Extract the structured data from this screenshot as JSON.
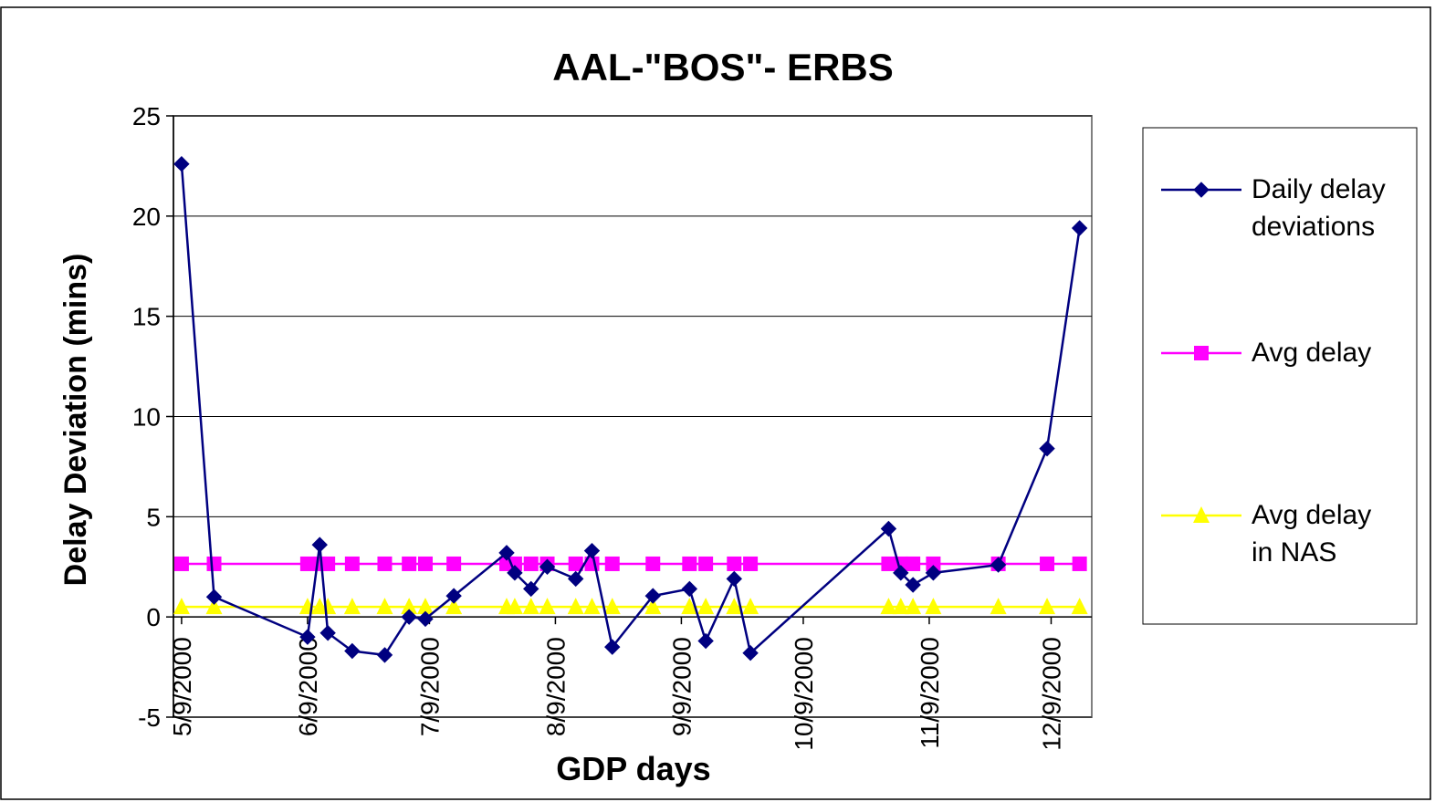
{
  "chart_data": {
    "type": "line",
    "title": "AAL-\"BOS\"- ERBS",
    "x_label": "GDP days",
    "y_label": "Delay Deviation (mins)",
    "x": [
      "5/9/2000",
      "5/17/2000",
      "6/9/2000",
      "6/12/2000",
      "6/14/2000",
      "6/20/2000",
      "6/28/2000",
      "7/4/2000",
      "7/8/2000",
      "7/15/2000",
      "7/28/2000",
      "7/30/2000",
      "8/3/2000",
      "8/7/2000",
      "8/14/2000",
      "8/18/2000",
      "8/23/2000",
      "9/2/2000",
      "9/11/2000",
      "9/15/2000",
      "9/22/2000",
      "9/26/2000",
      "10/30/2000",
      "11/2/2000",
      "11/5/2000",
      "11/10/2000",
      "11/26/2000",
      "12/8/2000",
      "12/16/2000"
    ],
    "series": [
      {
        "name": "Daily delay deviations",
        "color": "#000080",
        "marker": "diamond",
        "values": [
          22.6,
          1.0,
          -1.0,
          3.6,
          -0.8,
          -1.7,
          -1.9,
          0.0,
          -0.1,
          1.05,
          3.2,
          2.2,
          1.4,
          2.5,
          1.9,
          3.3,
          -1.5,
          1.05,
          1.4,
          -1.2,
          1.9,
          -1.8,
          4.4,
          2.2,
          1.6,
          2.2,
          2.6,
          8.4,
          19.4
        ]
      },
      {
        "name": "Avg delay",
        "color": "#ff00ff",
        "marker": "square",
        "values": [
          2.65,
          2.65,
          2.65,
          2.65,
          2.65,
          2.65,
          2.65,
          2.65,
          2.65,
          2.65,
          2.65,
          2.65,
          2.65,
          2.65,
          2.65,
          2.65,
          2.65,
          2.65,
          2.65,
          2.65,
          2.65,
          2.65,
          2.65,
          2.65,
          2.65,
          2.65,
          2.65,
          2.65,
          2.65
        ]
      },
      {
        "name": "Avg delay in NAS",
        "color": "#ffff00",
        "marker": "triangle",
        "values": [
          0.5,
          0.5,
          0.5,
          0.5,
          0.5,
          0.5,
          0.5,
          0.5,
          0.5,
          0.5,
          0.5,
          0.5,
          0.5,
          0.5,
          0.5,
          0.5,
          0.5,
          0.5,
          0.5,
          0.5,
          0.5,
          0.5,
          0.5,
          0.5,
          0.5,
          0.5,
          0.5,
          0.5,
          0.5
        ]
      }
    ],
    "xlim": [
      "5/7/2000",
      "12/19/2000"
    ],
    "xticks": [
      "5/9/2000",
      "6/9/2000",
      "7/9/2000",
      "8/9/2000",
      "9/9/2000",
      "10/9/2000",
      "11/9/2000",
      "12/9/2000"
    ],
    "ylim": [
      -5,
      25
    ],
    "yticks": [
      -5,
      0,
      5,
      10,
      15,
      20,
      25
    ],
    "grid": true,
    "legend": "right"
  }
}
